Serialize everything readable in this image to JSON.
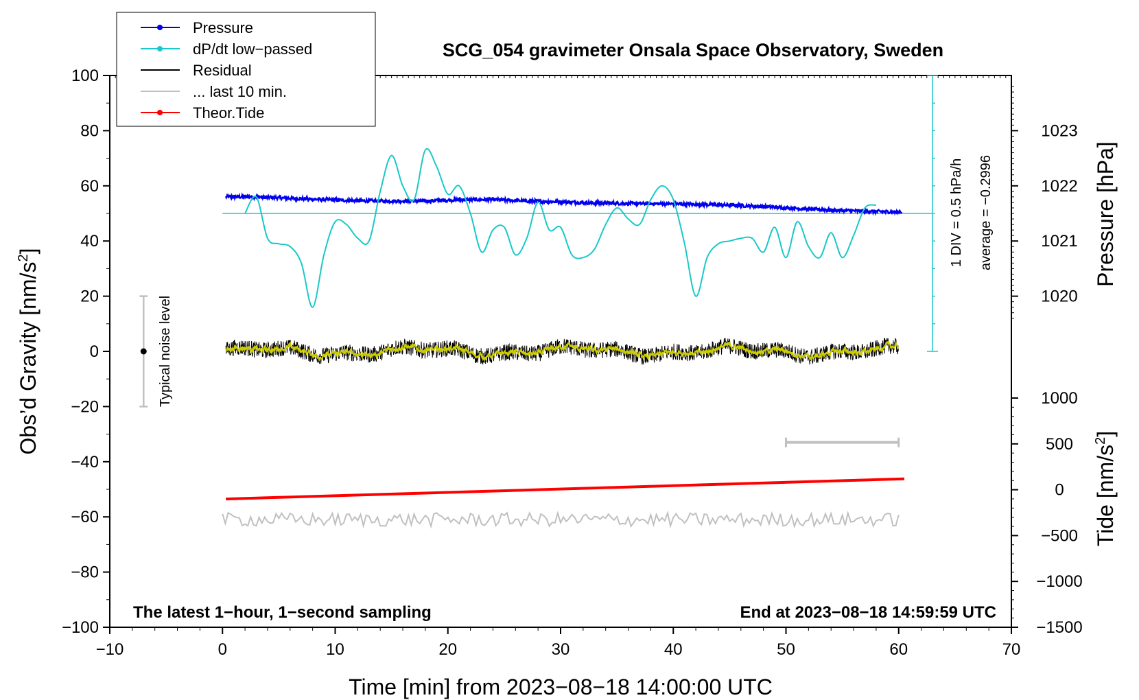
{
  "chart_data": {
    "type": "line",
    "title": "SCG_054 gravimeter Onsala Space Observatory, Sweden",
    "xlabel": "Time [min] from 2023−08−18 14:00:00 UTC",
    "ylabel": "Obs’d Gravity [nm/s",
    "ylabel_sup": "2",
    "ylabel_close": "]",
    "y2label": "Pressure [hPa]",
    "y3label": "Tide [nm/s",
    "y3label_sup": "2",
    "y3label_close": "]",
    "xlim": [
      -10,
      70
    ],
    "ylim": [
      -100,
      100
    ],
    "xticks": [
      "−10",
      "0",
      "10",
      "20",
      "30",
      "40",
      "50",
      "60",
      "70"
    ],
    "yticks": [
      "−100",
      "−80",
      "−60",
      "−40",
      "−20",
      "0",
      "20",
      "40",
      "60",
      "80",
      "100"
    ],
    "pressure_ticks": [
      "1020",
      "1021",
      "1022",
      "1023"
    ],
    "tide_ticks": [
      "−1500",
      "−1000",
      "−500",
      "0",
      "500",
      "1000"
    ],
    "note_left": "The latest 1−hour, 1−second sampling",
    "note_right": "End at 2023−08−18 14:59:59 UTC",
    "noise_label": "Typical noise level",
    "noise_range": [
      -20,
      20
    ],
    "div_label": "1 DIV = 0.5 hPa/h",
    "average_label": "average = −0.2996",
    "legend": [
      {
        "label": "Pressure",
        "color": "#0000ee",
        "marker": true
      },
      {
        "label": "dP/dt low−passed",
        "color": "#19c8c8",
        "marker": true
      },
      {
        "label": "Residual",
        "color": "#000000",
        "marker": false
      },
      {
        "label": "... last 10 min.",
        "color": "#c0c0c0",
        "marker": false
      },
      {
        "label": "Theor.Tide",
        "color": "#ff0000",
        "marker": true
      }
    ],
    "colors": {
      "pressure": "#0000ee",
      "dpdt": "#19c8c8",
      "residual": "#000000",
      "smooth": "#cccc00",
      "last10": "#c0c0c0",
      "tide": "#ff0000"
    },
    "series": [
      {
        "name": "Pressure",
        "x": [
          0.3,
          3,
          6,
          9,
          12,
          15,
          18,
          21,
          24,
          27,
          30,
          33,
          36,
          39,
          42,
          45,
          48,
          51,
          54,
          57,
          60.3
        ],
        "y": [
          56,
          56,
          55.5,
          55,
          54.6,
          54.5,
          54.5,
          55,
          55,
          54.5,
          54.2,
          53.8,
          53.6,
          53.5,
          53.3,
          53,
          52.5,
          51.8,
          51.2,
          50.8,
          50.5
        ]
      },
      {
        "name": "dP/dt low−passed",
        "x": [
          2,
          3,
          4,
          5,
          6,
          7,
          8,
          9,
          10,
          11,
          12,
          13,
          14,
          15,
          16,
          17,
          18,
          19,
          20,
          21,
          22,
          23,
          24,
          25,
          26,
          27,
          28,
          29,
          30,
          31,
          32,
          33,
          34,
          35,
          36,
          37,
          38,
          39,
          40,
          41,
          42,
          43,
          44,
          45,
          46,
          47,
          48,
          49,
          50,
          51,
          52,
          53,
          54,
          55,
          56,
          57,
          58
        ],
        "y": [
          50,
          56,
          41,
          39,
          38,
          32,
          16,
          35,
          47,
          46,
          41,
          40,
          58,
          71,
          60,
          55,
          73,
          67,
          57,
          60,
          50,
          36,
          44,
          45,
          35,
          41,
          54,
          44,
          45,
          35,
          34,
          37,
          46,
          52,
          48,
          46,
          55,
          60,
          55,
          39,
          20,
          34,
          39,
          40,
          41,
          41,
          36,
          45,
          34,
          47,
          38,
          34,
          43,
          34,
          42,
          52,
          53
        ]
      },
      {
        "name": "Residual",
        "x": [
          0.3,
          60
        ],
        "y": [
          0,
          0
        ],
        "noise_amplitude": 3
      },
      {
        "name": "... last 10 min.",
        "x": [
          0,
          60
        ],
        "y": [
          -61,
          -61
        ],
        "noise_amplitude": 2.5
      },
      {
        "name": "Theor.Tide",
        "x": [
          0.3,
          60.5
        ],
        "y": [
          -53.5,
          -46.2
        ]
      }
    ],
    "scale_bar": {
      "x": [
        50,
        60
      ],
      "y": -33
    },
    "pressure_zero_line_y": 50,
    "dpdt_axis_x": 63
  }
}
